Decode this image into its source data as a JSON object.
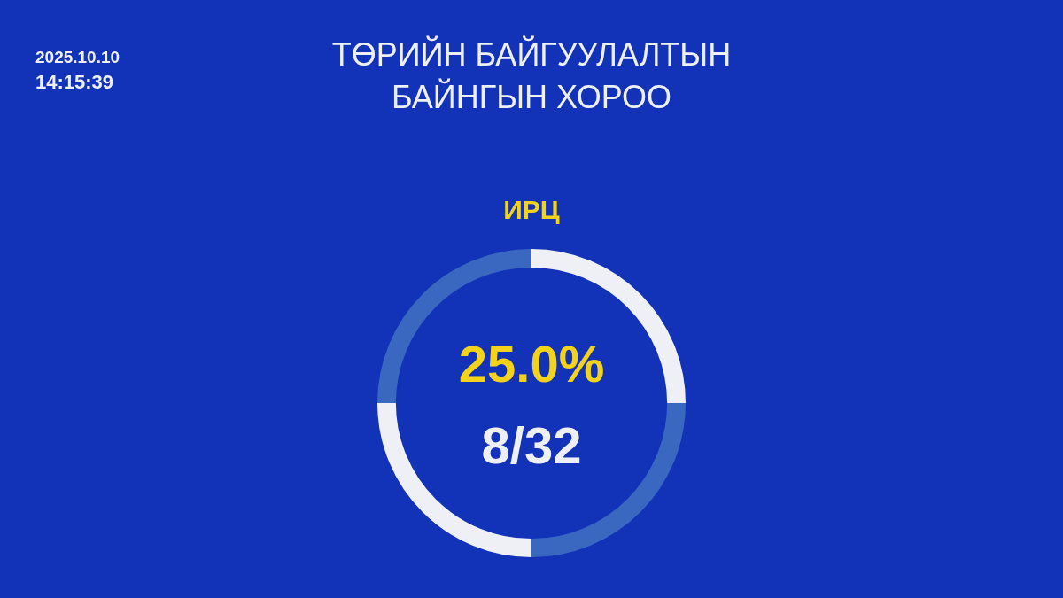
{
  "chart_data": {
    "type": "donut",
    "title": "ТӨРИЙН БАЙГУУЛАЛТЫН БАЙНГЫН ХОРОО",
    "subtitle": "ИРЦ",
    "categories": [
      null,
      null,
      null,
      null
    ],
    "values": [
      25,
      25,
      25,
      25
    ],
    "colors": [
      "#eef0f5",
      "#3a68c0",
      "#eef0f5",
      "#3a68c0"
    ],
    "annotations": [
      "2025.10.10",
      "14:15:39",
      "25.0%",
      "8/32"
    ],
    "legend": false
  }
}
